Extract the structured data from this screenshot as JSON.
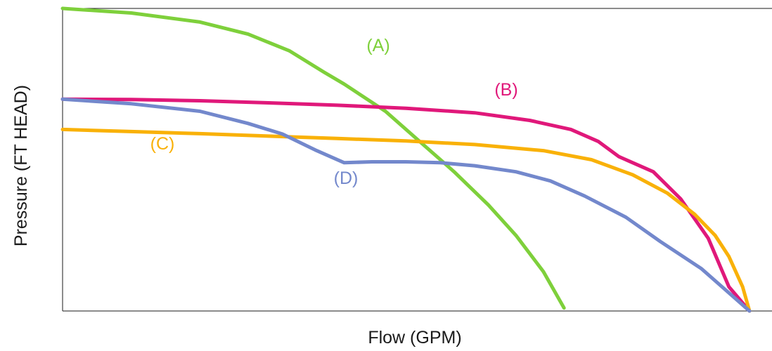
{
  "chart_data": {
    "type": "line",
    "xlabel": "Flow (GPM)",
    "ylabel": "Pressure (FT HEAD)",
    "xlim": [
      0,
      100
    ],
    "ylim": [
      0,
      100
    ],
    "grid": false,
    "legend": "none",
    "series": [
      {
        "name": "(A)",
        "color": "#7ed03b",
        "points": [
          [
            0,
            100
          ],
          [
            10,
            98.5
          ],
          [
            20,
            95.5
          ],
          [
            27,
            91.5
          ],
          [
            33,
            86
          ],
          [
            38,
            79
          ],
          [
            41,
            75
          ],
          [
            47,
            66
          ],
          [
            52,
            56
          ],
          [
            57,
            46
          ],
          [
            62,
            35
          ],
          [
            66,
            25
          ],
          [
            70,
            13
          ],
          [
            73,
            1
          ]
        ]
      },
      {
        "name": "(B)",
        "color": "#e0187a",
        "points": [
          [
            0,
            70
          ],
          [
            10,
            69.9
          ],
          [
            20,
            69.5
          ],
          [
            30,
            68.8
          ],
          [
            40,
            68
          ],
          [
            50,
            67
          ],
          [
            60,
            65.5
          ],
          [
            68,
            63
          ],
          [
            74,
            60
          ],
          [
            78,
            56
          ],
          [
            81,
            51
          ],
          [
            86,
            46
          ],
          [
            90,
            37
          ],
          [
            94,
            24
          ],
          [
            97,
            8
          ],
          [
            100,
            0
          ]
        ]
      },
      {
        "name": "(C)",
        "color": "#f9b108",
        "points": [
          [
            0,
            60
          ],
          [
            10,
            59.3
          ],
          [
            20,
            58.6
          ],
          [
            30,
            57.8
          ],
          [
            40,
            57
          ],
          [
            50,
            56.2
          ],
          [
            60,
            55
          ],
          [
            70,
            53
          ],
          [
            77,
            50
          ],
          [
            83,
            45
          ],
          [
            88,
            39
          ],
          [
            92,
            32
          ],
          [
            95,
            25
          ],
          [
            97,
            18
          ],
          [
            99,
            8
          ],
          [
            100,
            0
          ]
        ]
      },
      {
        "name": "(D)",
        "color": "#7388cc",
        "points": [
          [
            0,
            70
          ],
          [
            10,
            68.5
          ],
          [
            20,
            66
          ],
          [
            27,
            62
          ],
          [
            32,
            58.5
          ],
          [
            37,
            53
          ],
          [
            41,
            49
          ],
          [
            45,
            49.3
          ],
          [
            50,
            49.3
          ],
          [
            55,
            49
          ],
          [
            60,
            48
          ],
          [
            66,
            46
          ],
          [
            71,
            43
          ],
          [
            76,
            38
          ],
          [
            82,
            31
          ],
          [
            87,
            23
          ],
          [
            93,
            14
          ],
          [
            100,
            0
          ]
        ]
      }
    ]
  }
}
